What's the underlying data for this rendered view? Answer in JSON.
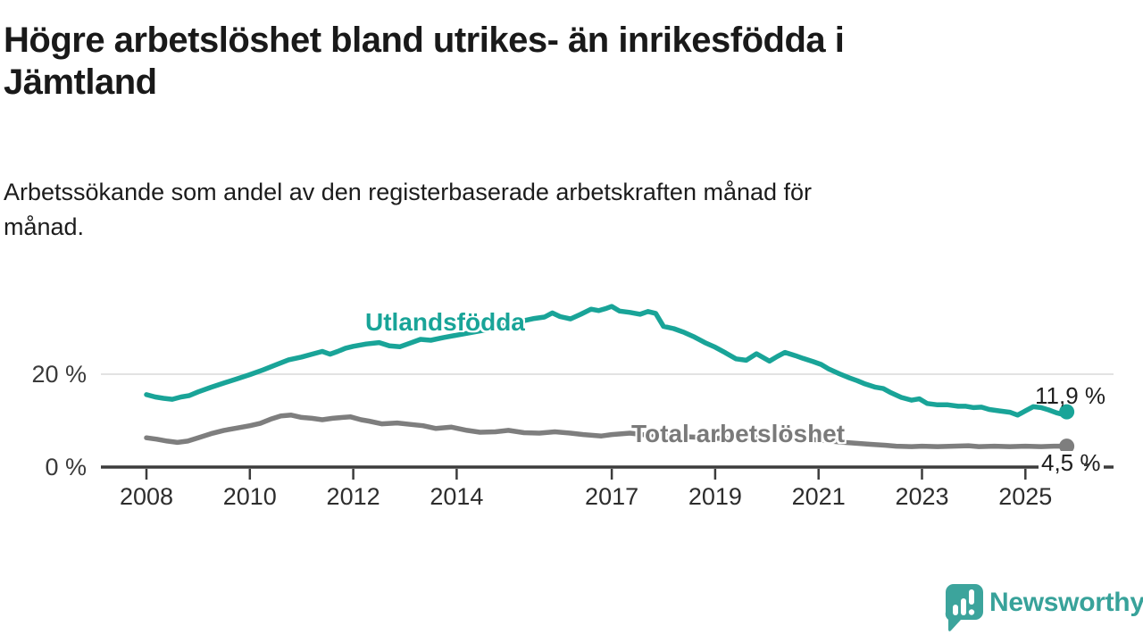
{
  "header": {
    "title": "Högre arbetslöshet bland utrikes- än inrikesfödda i\nJämtland",
    "subtitle": "Arbetssökande som andel av den registerbaserade arbetskraften månad för\nmånad."
  },
  "footer": {
    "brand": "Newsworthy",
    "brand_color": "#3ca49c"
  },
  "chart_data": {
    "type": "line",
    "title": "Högre arbetslöshet bland utrikes- än inrikesfödda i Jämtland",
    "subtitle": "Arbetssökande som andel av den registerbaserade arbetskraften månad för månad.",
    "x_axis": {
      "ticks": [
        {
          "label": "2008",
          "year": 2008
        },
        {
          "label": "2010",
          "year": 2010
        },
        {
          "label": "2012",
          "year": 2012
        },
        {
          "label": "2014",
          "year": 2014
        },
        {
          "label": "2017",
          "year": 2017
        },
        {
          "label": "2019",
          "year": 2019
        },
        {
          "label": "2021",
          "year": 2021
        },
        {
          "label": "2023",
          "year": 2023
        },
        {
          "label": "2025",
          "year": 2025
        }
      ],
      "range": [
        2007.9,
        2025.9
      ],
      "grid": false
    },
    "y_axis": {
      "ticks": [
        {
          "label": "0 %",
          "value": 0
        },
        {
          "label": "20 %",
          "value": 20
        }
      ],
      "range": [
        0,
        38
      ],
      "grid": true,
      "unit": "%"
    },
    "axis_color": "#3c3c3c",
    "grid_color": "#d9d9d9",
    "legend_position": "inline-labels",
    "series": [
      {
        "name": "Utlandsfödda",
        "label": "Utlandsfödda",
        "color": "#19a498",
        "end_label": "11,9 %",
        "end_value": 11.9,
        "points": [
          [
            2008.0,
            15.6
          ],
          [
            2008.17,
            15.1
          ],
          [
            2008.33,
            14.8
          ],
          [
            2008.5,
            14.6
          ],
          [
            2008.67,
            15.1
          ],
          [
            2008.83,
            15.4
          ],
          [
            2009.0,
            16.2
          ],
          [
            2009.25,
            17.2
          ],
          [
            2009.5,
            18.1
          ],
          [
            2009.75,
            19.0
          ],
          [
            2010.0,
            19.9
          ],
          [
            2010.25,
            20.9
          ],
          [
            2010.5,
            22.0
          ],
          [
            2010.75,
            23.1
          ],
          [
            2011.0,
            23.7
          ],
          [
            2011.2,
            24.3
          ],
          [
            2011.4,
            24.9
          ],
          [
            2011.55,
            24.3
          ],
          [
            2011.7,
            24.9
          ],
          [
            2011.85,
            25.6
          ],
          [
            2012.0,
            26.0
          ],
          [
            2012.25,
            26.5
          ],
          [
            2012.5,
            26.8
          ],
          [
            2012.7,
            26.1
          ],
          [
            2012.9,
            25.9
          ],
          [
            2013.1,
            26.7
          ],
          [
            2013.3,
            27.5
          ],
          [
            2013.5,
            27.3
          ],
          [
            2013.75,
            27.9
          ],
          [
            2014.0,
            28.4
          ],
          [
            2014.25,
            28.9
          ],
          [
            2014.5,
            29.4
          ],
          [
            2014.75,
            30.0
          ],
          [
            2015.0,
            30.7
          ],
          [
            2015.25,
            31.4
          ],
          [
            2015.5,
            32.0
          ],
          [
            2015.7,
            32.3
          ],
          [
            2015.85,
            33.2
          ],
          [
            2016.0,
            32.4
          ],
          [
            2016.2,
            31.9
          ],
          [
            2016.4,
            32.9
          ],
          [
            2016.6,
            34.0
          ],
          [
            2016.75,
            33.7
          ],
          [
            2016.9,
            34.2
          ],
          [
            2017.0,
            34.6
          ],
          [
            2017.15,
            33.6
          ],
          [
            2017.35,
            33.3
          ],
          [
            2017.55,
            32.9
          ],
          [
            2017.7,
            33.5
          ],
          [
            2017.85,
            33.1
          ],
          [
            2018.0,
            30.3
          ],
          [
            2018.2,
            29.8
          ],
          [
            2018.4,
            29.0
          ],
          [
            2018.6,
            28.0
          ],
          [
            2018.8,
            26.8
          ],
          [
            2019.0,
            25.8
          ],
          [
            2019.2,
            24.6
          ],
          [
            2019.4,
            23.3
          ],
          [
            2019.6,
            23.0
          ],
          [
            2019.8,
            24.4
          ],
          [
            2020.05,
            22.8
          ],
          [
            2020.2,
            23.8
          ],
          [
            2020.35,
            24.7
          ],
          [
            2020.55,
            24.0
          ],
          [
            2020.7,
            23.4
          ],
          [
            2020.9,
            22.7
          ],
          [
            2021.05,
            22.1
          ],
          [
            2021.2,
            21.1
          ],
          [
            2021.4,
            20.1
          ],
          [
            2021.6,
            19.2
          ],
          [
            2021.75,
            18.6
          ],
          [
            2021.9,
            17.9
          ],
          [
            2022.1,
            17.2
          ],
          [
            2022.25,
            16.9
          ],
          [
            2022.4,
            16.0
          ],
          [
            2022.6,
            15.0
          ],
          [
            2022.8,
            14.4
          ],
          [
            2022.95,
            14.7
          ],
          [
            2023.1,
            13.7
          ],
          [
            2023.3,
            13.4
          ],
          [
            2023.5,
            13.4
          ],
          [
            2023.7,
            13.1
          ],
          [
            2023.85,
            13.1
          ],
          [
            2024.0,
            12.8
          ],
          [
            2024.15,
            12.9
          ],
          [
            2024.3,
            12.4
          ],
          [
            2024.5,
            12.1
          ],
          [
            2024.7,
            11.8
          ],
          [
            2024.85,
            11.2
          ],
          [
            2025.0,
            12.1
          ],
          [
            2025.15,
            13.0
          ],
          [
            2025.3,
            12.8
          ],
          [
            2025.45,
            12.3
          ],
          [
            2025.6,
            11.7
          ],
          [
            2025.7,
            11.4
          ],
          [
            2025.8,
            11.9
          ]
        ]
      },
      {
        "name": "Total arbetslöshet",
        "label": "Total arbetslöshet",
        "color": "#7e7e7e",
        "end_label": "4,5 %",
        "end_value": 4.5,
        "points": [
          [
            2008.0,
            6.3
          ],
          [
            2008.2,
            6.0
          ],
          [
            2008.4,
            5.6
          ],
          [
            2008.6,
            5.3
          ],
          [
            2008.8,
            5.6
          ],
          [
            2009.0,
            6.3
          ],
          [
            2009.25,
            7.2
          ],
          [
            2009.5,
            7.9
          ],
          [
            2009.75,
            8.4
          ],
          [
            2010.0,
            8.9
          ],
          [
            2010.2,
            9.4
          ],
          [
            2010.4,
            10.3
          ],
          [
            2010.6,
            11.0
          ],
          [
            2010.8,
            11.2
          ],
          [
            2011.0,
            10.7
          ],
          [
            2011.2,
            10.5
          ],
          [
            2011.4,
            10.2
          ],
          [
            2011.6,
            10.5
          ],
          [
            2011.8,
            10.7
          ],
          [
            2011.95,
            10.8
          ],
          [
            2012.15,
            10.2
          ],
          [
            2012.3,
            9.9
          ],
          [
            2012.55,
            9.3
          ],
          [
            2012.85,
            9.5
          ],
          [
            2013.1,
            9.2
          ],
          [
            2013.35,
            8.9
          ],
          [
            2013.6,
            8.3
          ],
          [
            2013.9,
            8.6
          ],
          [
            2014.2,
            7.9
          ],
          [
            2014.45,
            7.5
          ],
          [
            2014.75,
            7.6
          ],
          [
            2015.0,
            7.9
          ],
          [
            2015.3,
            7.4
          ],
          [
            2015.6,
            7.3
          ],
          [
            2015.9,
            7.6
          ],
          [
            2016.2,
            7.3
          ],
          [
            2016.45,
            7.0
          ],
          [
            2016.8,
            6.7
          ],
          [
            2017.0,
            7.0
          ],
          [
            2017.35,
            7.3
          ],
          [
            2017.6,
            7.0
          ],
          [
            2017.95,
            6.7
          ],
          [
            2018.3,
            6.6
          ],
          [
            2018.7,
            6.4
          ],
          [
            2019.0,
            6.2
          ],
          [
            2019.5,
            6.1
          ],
          [
            2020.0,
            6.5
          ],
          [
            2020.5,
            6.3
          ],
          [
            2021.0,
            5.8
          ],
          [
            2021.5,
            5.3
          ],
          [
            2022.0,
            4.9
          ],
          [
            2022.3,
            4.7
          ],
          [
            2022.5,
            4.5
          ],
          [
            2022.8,
            4.4
          ],
          [
            2023.0,
            4.5
          ],
          [
            2023.3,
            4.4
          ],
          [
            2023.6,
            4.5
          ],
          [
            2023.9,
            4.6
          ],
          [
            2024.1,
            4.4
          ],
          [
            2024.4,
            4.5
          ],
          [
            2024.7,
            4.4
          ],
          [
            2025.0,
            4.5
          ],
          [
            2025.3,
            4.4
          ],
          [
            2025.55,
            4.5
          ],
          [
            2025.8,
            4.5
          ]
        ]
      }
    ]
  }
}
